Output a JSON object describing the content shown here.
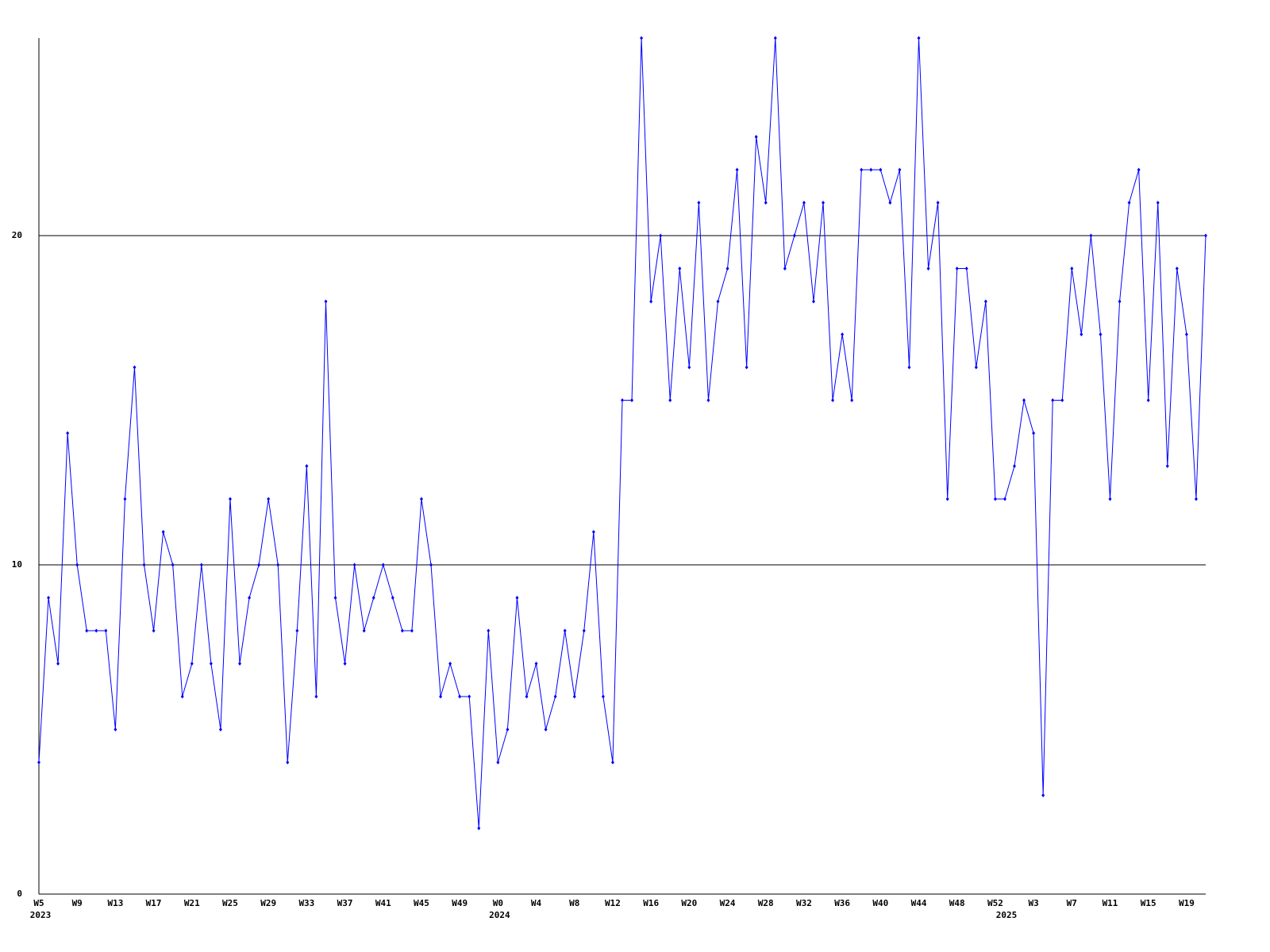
{
  "chart_data": {
    "type": "line",
    "categories": [
      "W5",
      null,
      null,
      null,
      "W9",
      null,
      null,
      null,
      "W13",
      null,
      null,
      null,
      "W17",
      null,
      null,
      null,
      "W21",
      null,
      null,
      null,
      "W25",
      null,
      null,
      null,
      "W29",
      null,
      null,
      null,
      "W33",
      null,
      null,
      null,
      "W37",
      null,
      null,
      null,
      "W41",
      null,
      null,
      null,
      "W45",
      null,
      null,
      null,
      "W49",
      null,
      null,
      null,
      "W0",
      null,
      null,
      null,
      "W4",
      null,
      null,
      null,
      "W8",
      null,
      null,
      null,
      "W12",
      null,
      null,
      null,
      "W16",
      null,
      null,
      null,
      "W20",
      null,
      null,
      null,
      "W24",
      null,
      null,
      null,
      "W28",
      null,
      null,
      null,
      "W32",
      null,
      null,
      null,
      "W36",
      null,
      null,
      null,
      "W40",
      null,
      null,
      null,
      "W44",
      null,
      null,
      null,
      "W48",
      null,
      null,
      null,
      "W52",
      null,
      null,
      null,
      "W3",
      null,
      null,
      null,
      "W7",
      null,
      null,
      null,
      "W11",
      null,
      null,
      null,
      "W15",
      null,
      null,
      null,
      "W19",
      null,
      null
    ],
    "years": [
      "2023",
      null,
      null,
      null,
      null,
      null,
      null,
      null,
      null,
      null,
      null,
      null,
      null,
      null,
      null,
      null,
      null,
      null,
      null,
      null,
      null,
      null,
      null,
      null,
      null,
      null,
      null,
      null,
      null,
      null,
      null,
      null,
      null,
      null,
      null,
      null,
      null,
      null,
      null,
      null,
      null,
      null,
      null,
      null,
      null,
      null,
      null,
      null,
      "2024",
      null,
      null,
      null,
      null,
      null,
      null,
      null,
      null,
      null,
      null,
      null,
      null,
      null,
      null,
      null,
      null,
      null,
      null,
      null,
      null,
      null,
      null,
      null,
      null,
      null,
      null,
      null,
      null,
      null,
      null,
      null,
      null,
      null,
      null,
      null,
      null,
      null,
      null,
      null,
      null,
      null,
      null,
      null,
      null,
      null,
      null,
      null,
      null,
      null,
      null,
      null,
      null,
      "2025",
      null,
      null,
      null,
      null,
      null,
      null,
      null,
      null,
      null,
      null,
      null,
      null,
      null,
      null,
      null,
      null,
      null,
      null,
      null,
      null,
      null
    ],
    "series": [
      {
        "color": "#0000ff",
        "values": [
          4,
          9,
          7,
          14,
          10,
          8,
          8,
          8,
          5,
          12,
          16,
          10,
          8,
          11,
          10,
          6,
          7,
          10,
          7,
          5,
          12,
          7,
          9,
          10,
          12,
          10,
          4,
          8,
          13,
          6,
          18,
          9,
          7,
          10,
          8,
          9,
          10,
          9,
          8,
          8,
          12,
          10,
          6,
          7,
          6,
          6,
          2,
          8,
          4,
          5,
          9,
          6,
          7,
          5,
          6,
          8,
          6,
          8,
          11,
          6,
          4,
          15,
          15,
          26,
          18,
          20,
          15,
          19,
          16,
          21,
          15,
          18,
          19,
          22,
          16,
          23,
          21,
          26,
          19,
          20,
          21,
          18,
          21,
          15,
          17,
          15,
          22,
          22,
          22,
          21,
          22,
          16,
          26,
          19,
          21,
          12,
          19,
          19,
          16,
          18,
          12,
          12,
          13,
          15,
          14,
          3,
          15,
          15,
          19,
          17,
          20,
          17,
          12,
          18,
          21,
          22,
          15,
          21,
          13,
          19,
          17,
          12,
          20
        ]
      }
    ],
    "ylim": [
      0,
      26
    ],
    "yticks": [
      0,
      10,
      20
    ],
    "grid": true
  }
}
